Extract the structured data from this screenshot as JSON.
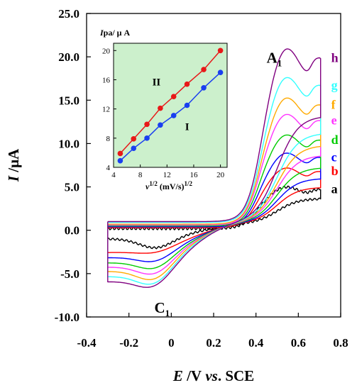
{
  "chart_data": [
    {
      "type": "line",
      "title": "",
      "xlabel": {
        "italic": "E",
        "mid": " /V",
        "italic2": " vs",
        "rest": ". SCE"
      },
      "ylabel": {
        "italic": "I",
        "rest": " /μA"
      },
      "xlim": [
        -0.4,
        0.8
      ],
      "ylim": [
        -10.0,
        25.0
      ],
      "x_ticks": [
        -0.4,
        -0.2,
        0,
        0.2,
        0.4,
        0.6,
        0.8
      ],
      "x_tick_labels": [
        "-0.4",
        "-0.2",
        "0",
        "0.2",
        "0.4",
        "0.6",
        "0.8"
      ],
      "y_ticks": [
        -10,
        -5,
        0,
        5,
        10,
        15,
        20,
        25
      ],
      "y_tick_labels": [
        "-10.0",
        "-5.0",
        "0.0",
        "5.0",
        "10.0",
        "15.0",
        "20.0",
        "25.0"
      ],
      "grid": false,
      "annotations": [
        {
          "main": "A",
          "sub": "1",
          "x": 0.45,
          "y": 19.3
        },
        {
          "main": "C",
          "sub": "1",
          "x": -0.08,
          "y": -9.5
        }
      ],
      "series": [
        {
          "label": "a",
          "color": "#000000",
          "ipa": 5.2,
          "ipc": -2.2,
          "base_a": 0.2,
          "base_c": -1.0
        },
        {
          "label": "b",
          "color": "#ff0000",
          "ipa": 7.5,
          "ipc": -3.0,
          "base_a": 0.3,
          "base_c": -2.6
        },
        {
          "label": "c",
          "color": "#0000ff",
          "ipa": 9.3,
          "ipc": -4.1,
          "base_a": 0.4,
          "base_c": -3.2
        },
        {
          "label": "d",
          "color": "#00cc00",
          "ipa": 11.5,
          "ipc": -5.0,
          "base_a": 0.5,
          "base_c": -3.8
        },
        {
          "label": "e",
          "color": "#ff33ff",
          "ipa": 14.0,
          "ipc": -5.7,
          "base_a": 0.6,
          "base_c": -4.3
        },
        {
          "label": "f",
          "color": "#ffaa00",
          "ipa": 16.0,
          "ipc": -6.4,
          "base_a": 0.7,
          "base_c": -4.8
        },
        {
          "label": "g",
          "color": "#33ffff",
          "ipa": 18.5,
          "ipc": -7.0,
          "base_a": 0.9,
          "base_c": -5.4
        },
        {
          "label": "h",
          "color": "#800080",
          "ipa": 22.0,
          "ipc": -7.4,
          "base_a": 1.0,
          "base_c": -6.0
        }
      ]
    },
    {
      "type": "scatter",
      "title": "",
      "ylabel": {
        "italic": "I",
        "rest": "pa/ μ A"
      },
      "xlabel": {
        "italic": "v",
        "sup": "1/2",
        "rest": " (mV/s)",
        "sup2": "1/2"
      },
      "xlim": [
        4,
        21
      ],
      "ylim": [
        4,
        21
      ],
      "x_ticks": [
        4,
        8,
        12,
        16,
        20
      ],
      "x_tick_labels": [
        "4",
        "8",
        "12",
        "16",
        "20"
      ],
      "y_ticks": [
        4,
        8,
        12,
        16,
        20
      ],
      "y_tick_labels": [
        "4",
        "8",
        "12",
        "16",
        "20"
      ],
      "background": "#ccf0cc",
      "series": [
        {
          "name": "II",
          "color": "#e81818",
          "x": [
            5,
            7,
            9,
            11,
            13,
            15,
            17.5,
            20
          ],
          "y": [
            5.9,
            7.9,
            9.9,
            12.1,
            13.7,
            15.4,
            17.4,
            20.0
          ]
        },
        {
          "name": "I",
          "color": "#1a3ff0",
          "x": [
            5,
            7,
            9,
            11,
            13,
            15,
            17.5,
            20
          ],
          "y": [
            4.9,
            6.6,
            8.0,
            9.8,
            11.1,
            12.5,
            14.9,
            17.0
          ]
        }
      ],
      "annotations": [
        {
          "text": "II",
          "x": 9.8,
          "y": 15.2
        },
        {
          "text": "I",
          "x": 14.7,
          "y": 9.1
        }
      ]
    }
  ]
}
